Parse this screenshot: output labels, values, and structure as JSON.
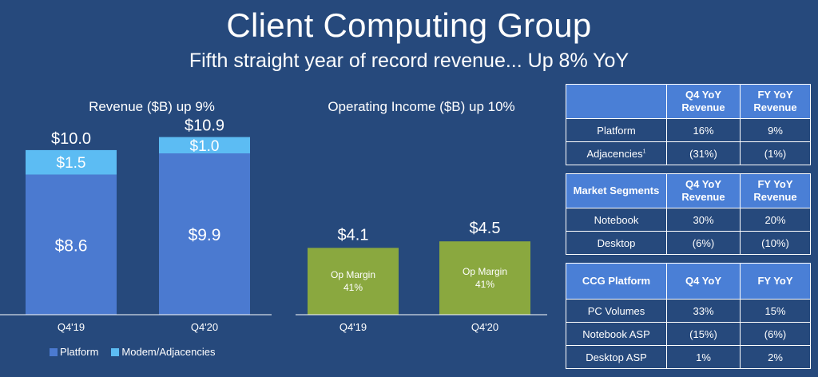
{
  "title": "Client Computing Group",
  "subtitle": "Fifth straight year of record revenue... Up 8% YoY",
  "colors": {
    "background": "#26497c",
    "platform": "#4b7ad0",
    "modem": "#5cbcf3",
    "op_income": "#8aa83f",
    "table_header": "#4a7fd6"
  },
  "legend": {
    "platform_label": "Platform",
    "modem_label": "Modem/Adjacencies"
  },
  "chart_data": [
    {
      "type": "bar",
      "stacked": true,
      "title": "Revenue ($B) up 9%",
      "categories": [
        "Q4'19",
        "Q4'20"
      ],
      "series": [
        {
          "name": "Platform",
          "values": [
            8.6,
            9.9
          ],
          "labels": [
            "$8.6",
            "$9.9"
          ]
        },
        {
          "name": "Modem/Adjacencies",
          "values": [
            1.5,
            1.0
          ],
          "labels": [
            "$1.5",
            "$1.0"
          ]
        }
      ],
      "totals": [
        10.0,
        10.9
      ],
      "total_labels": [
        "$10.0",
        "$10.9"
      ],
      "ylim": [
        0,
        11
      ],
      "legend": "bottom-left"
    },
    {
      "type": "bar",
      "title": "Operating Income ($B) up 10%",
      "categories": [
        "Q4'19",
        "Q4'20"
      ],
      "values": [
        4.1,
        4.5
      ],
      "value_labels": [
        "$4.1",
        "$4.5"
      ],
      "inner_label": "Op Margin",
      "margins": [
        "41%",
        "41%"
      ],
      "ylim": [
        0,
        11
      ]
    }
  ],
  "tables": [
    {
      "headers": [
        "",
        "Q4 YoY Revenue",
        "FY YoY Revenue"
      ],
      "rows": [
        [
          "Platform",
          "16%",
          "9%"
        ],
        [
          "Adjacencies",
          "(31%)",
          "(1%)"
        ]
      ],
      "footnote_mark": "1"
    },
    {
      "headers": [
        "Market Segments",
        "Q4 YoY Revenue",
        "FY YoY Revenue"
      ],
      "rows": [
        [
          "Notebook",
          "30%",
          "20%"
        ],
        [
          "Desktop",
          "(6%)",
          "(10%)"
        ]
      ]
    },
    {
      "headers": [
        "CCG Platform",
        "Q4 YoY",
        "FY YoY"
      ],
      "rows": [
        [
          "PC Volumes",
          "33%",
          "15%"
        ],
        [
          "Notebook ASP",
          "(15%)",
          "(6%)"
        ],
        [
          "Desktop ASP",
          "1%",
          "2%"
        ]
      ]
    }
  ]
}
